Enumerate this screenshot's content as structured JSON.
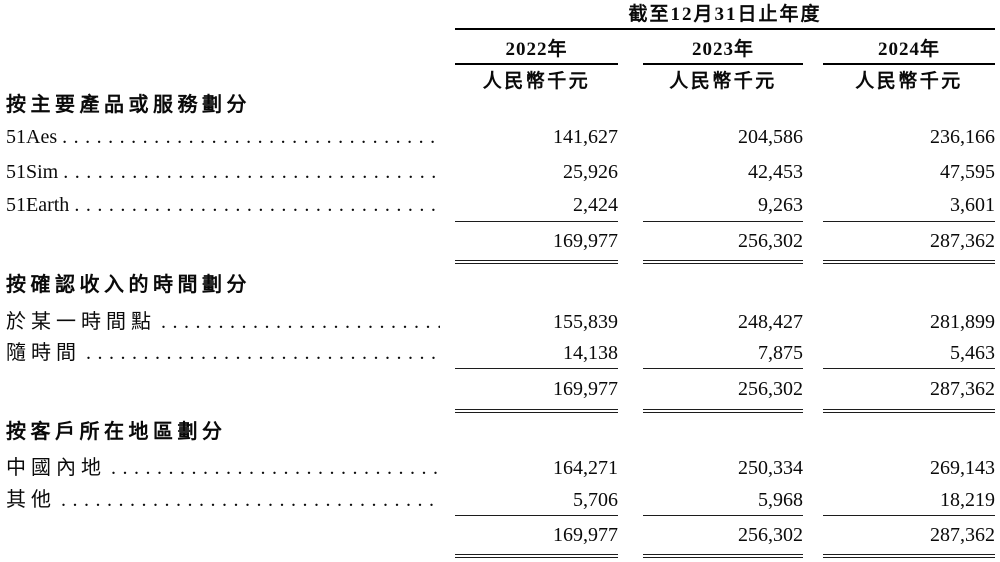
{
  "table": {
    "period_header": "截至12月31日止年度",
    "columns": [
      {
        "year": "2022年",
        "unit": "人民幣千元"
      },
      {
        "year": "2023年",
        "unit": "人民幣千元"
      },
      {
        "year": "2024年",
        "unit": "人民幣千元"
      }
    ],
    "sections": [
      {
        "title": "按主要產品或服務劃分",
        "rows": [
          {
            "label": "51Aes",
            "values": [
              "141,627",
              "204,586",
              "236,166"
            ]
          },
          {
            "label": "51Sim",
            "values": [
              "25,926",
              "42,453",
              "47,595"
            ]
          },
          {
            "label": "51Earth",
            "values": [
              "2,424",
              "9,263",
              "3,601"
            ]
          }
        ],
        "total": {
          "values": [
            "169,977",
            "256,302",
            "287,362"
          ]
        }
      },
      {
        "title": "按確認收入的時間劃分",
        "rows": [
          {
            "label": "於某一時間點",
            "values": [
              "155,839",
              "248,427",
              "281,899"
            ]
          },
          {
            "label": "隨時間",
            "values": [
              "14,138",
              "7,875",
              "5,463"
            ]
          }
        ],
        "total": {
          "values": [
            "169,977",
            "256,302",
            "287,362"
          ]
        }
      },
      {
        "title": "按客戶所在地區劃分",
        "rows": [
          {
            "label": "中國內地",
            "values": [
              "164,271",
              "250,334",
              "269,143"
            ]
          },
          {
            "label": "其他",
            "values": [
              "5,706",
              "5,968",
              "18,219"
            ]
          }
        ],
        "total": {
          "values": [
            "169,977",
            "256,302",
            "287,362"
          ]
        }
      }
    ]
  }
}
